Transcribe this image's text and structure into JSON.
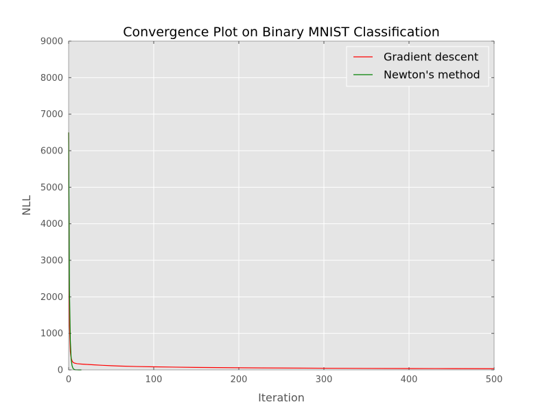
{
  "chart_data": {
    "type": "line",
    "title": "Convergence Plot on Binary MNIST Classification",
    "xlabel": "Iteration",
    "ylabel": "NLL",
    "xlim": [
      0,
      500
    ],
    "ylim": [
      0,
      9000
    ],
    "xticks": [
      0,
      100,
      200,
      300,
      400,
      500
    ],
    "yticks": [
      0,
      1000,
      2000,
      3000,
      4000,
      5000,
      6000,
      7000,
      8000,
      9000
    ],
    "grid": true,
    "legend_position": "top-right",
    "background_color": "#e5e5e5",
    "series": [
      {
        "name": "Gradient descent",
        "color": "#ff0000",
        "x": [
          0,
          1,
          2,
          3,
          4,
          5,
          7,
          10,
          15,
          20,
          30,
          40,
          50,
          60,
          80,
          100,
          150,
          200,
          250,
          300,
          350,
          400,
          450,
          500
        ],
        "y": [
          6500,
          1200,
          500,
          320,
          250,
          210,
          185,
          170,
          160,
          152,
          138,
          125,
          115,
          106,
          93,
          84,
          68,
          58,
          51,
          46,
          41,
          38,
          35,
          33
        ]
      },
      {
        "name": "Newton's method",
        "color": "#008000",
        "x": [
          0,
          1,
          2,
          3,
          4,
          5,
          6,
          7,
          8,
          10,
          12,
          15
        ],
        "y": [
          6500,
          2200,
          800,
          300,
          120,
          50,
          20,
          8,
          3,
          1,
          0.5,
          0.2
        ]
      }
    ]
  }
}
